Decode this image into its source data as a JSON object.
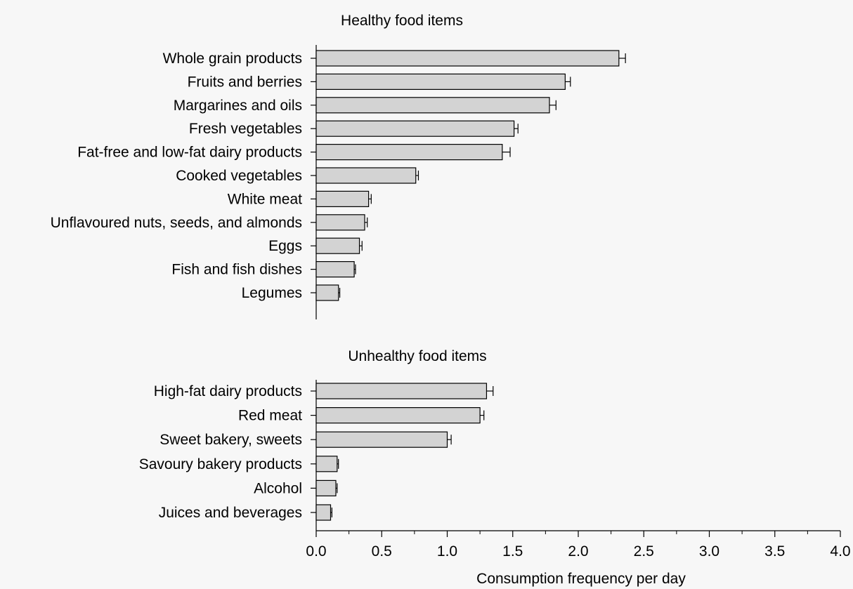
{
  "chart_data": [
    {
      "type": "bar",
      "orientation": "horizontal",
      "title": "Healthy food items",
      "categories": [
        "Whole grain products",
        "Fruits and berries",
        "Margarines and oils",
        "Fresh vegetables",
        "Fat-free and low-fat dairy products",
        "Cooked vegetables",
        "White meat",
        "Unflavoured nuts, seeds, and almonds",
        "Eggs",
        "Fish and fish dishes",
        "Legumes"
      ],
      "values": [
        2.31,
        1.9,
        1.78,
        1.51,
        1.42,
        0.76,
        0.4,
        0.37,
        0.33,
        0.29,
        0.17
      ],
      "error_upper": [
        2.36,
        1.94,
        1.83,
        1.54,
        1.48,
        0.78,
        0.42,
        0.39,
        0.35,
        0.3,
        0.18
      ],
      "bar_color": "#d3d3d3"
    },
    {
      "type": "bar",
      "orientation": "horizontal",
      "title": "Unhealthy food items",
      "categories": [
        "High-fat dairy products",
        "Red meat",
        "Sweet bakery, sweets",
        "Savoury bakery products",
        "Alcohol",
        "Juices and beverages"
      ],
      "values": [
        1.3,
        1.25,
        1.0,
        0.16,
        0.15,
        0.11
      ],
      "error_upper": [
        1.35,
        1.28,
        1.03,
        0.17,
        0.16,
        0.12
      ],
      "bar_color": "#d3d3d3"
    }
  ],
  "x_axis": {
    "label": "Consumption frequency per day",
    "ticks": [
      "0.0",
      "0.5",
      "1.0",
      "1.5",
      "2.0",
      "2.5",
      "3.0",
      "3.5",
      "4.0"
    ],
    "tick_values": [
      0,
      0.5,
      1.0,
      1.5,
      2.0,
      2.5,
      3.0,
      3.5,
      4.0
    ],
    "range": [
      0,
      4.0
    ],
    "grid": false
  }
}
